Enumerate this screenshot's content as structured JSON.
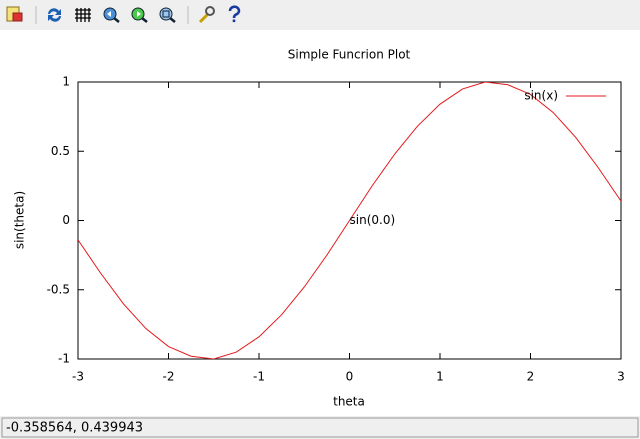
{
  "chart_data": {
    "type": "line",
    "title": "Simple Funcrion Plot",
    "x_label": "theta",
    "y_label": "sin(theta)",
    "x": [
      -3,
      -2.75,
      -2.5,
      -2.25,
      -2,
      -1.75,
      -1.5,
      -1.25,
      -1,
      -0.75,
      -0.5,
      -0.25,
      0,
      0.25,
      0.5,
      0.75,
      1,
      1.25,
      1.5,
      1.75,
      2,
      2.25,
      2.5,
      2.75,
      3
    ],
    "series": [
      {
        "name": "sin(x)",
        "color": "#e41a1c",
        "values": [
          -0.14,
          -0.38,
          -0.6,
          -0.78,
          -0.91,
          -0.98,
          -1.0,
          -0.95,
          -0.84,
          -0.68,
          -0.48,
          -0.25,
          0,
          0.25,
          0.48,
          0.68,
          0.84,
          0.95,
          1.0,
          0.98,
          0.91,
          0.78,
          0.6,
          0.38,
          0.14
        ]
      }
    ],
    "xlim": [
      -3,
      3
    ],
    "xticks": [
      -3,
      -2,
      -1,
      0,
      1,
      2,
      3
    ],
    "ylim": [
      -1,
      1
    ],
    "yticks": [
      -1,
      -0.5,
      0,
      0.5,
      1
    ],
    "grid": false,
    "legend": "top-right",
    "annotations": [
      {
        "text": "sin(0.0)",
        "x": 0,
        "y": 0
      }
    ]
  },
  "status_bar": {
    "text": "-0.358564,  0.439943"
  }
}
